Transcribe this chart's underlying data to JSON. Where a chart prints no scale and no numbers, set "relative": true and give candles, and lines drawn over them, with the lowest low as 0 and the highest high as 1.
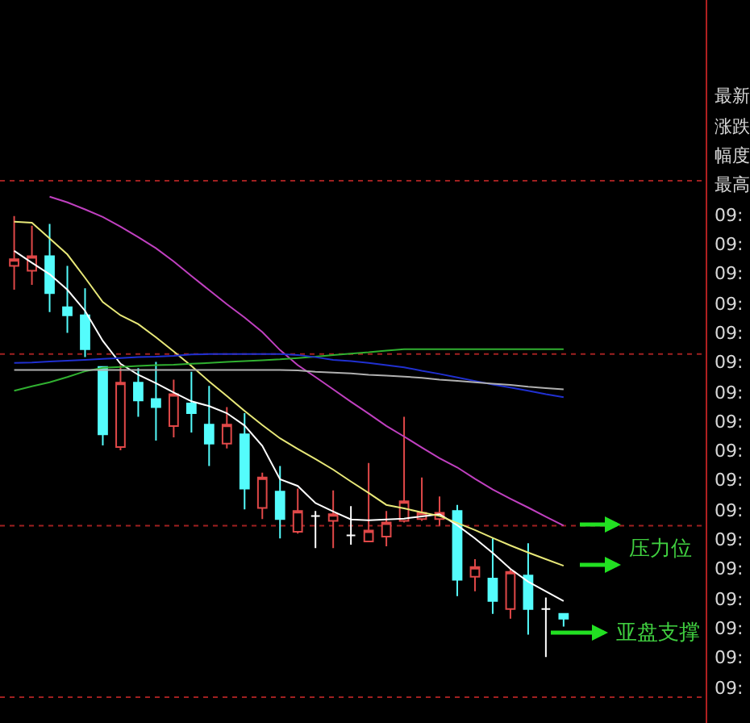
{
  "chart_data": {
    "type": "candlestick",
    "relative": true,
    "categories": [
      null,
      null,
      null,
      null,
      null,
      null,
      null,
      null,
      null,
      null,
      null,
      null,
      null,
      null,
      null,
      null,
      null,
      null,
      null,
      null,
      null,
      null,
      null,
      null,
      null,
      null,
      null,
      null,
      null,
      null,
      null,
      null
    ],
    "ohlc": [
      [
        0.887,
        1.0,
        0.833,
        0.902
      ],
      [
        0.876,
        0.978,
        0.844,
        0.909
      ],
      [
        0.909,
        0.982,
        0.782,
        0.825
      ],
      [
        0.793,
        0.887,
        0.735,
        0.775
      ],
      [
        0.775,
        0.836,
        0.68,
        0.698
      ],
      [
        0.658,
        0.658,
        0.48,
        0.505
      ],
      [
        0.476,
        0.662,
        0.469,
        0.622
      ],
      [
        0.622,
        0.655,
        0.545,
        0.582
      ],
      [
        0.585,
        0.669,
        0.491,
        0.567
      ],
      [
        0.524,
        0.629,
        0.498,
        0.596
      ],
      [
        0.575,
        0.647,
        0.509,
        0.553
      ],
      [
        0.527,
        0.615,
        0.433,
        0.484
      ],
      [
        0.484,
        0.567,
        0.473,
        0.527
      ],
      [
        0.505,
        0.553,
        0.335,
        0.382
      ],
      [
        0.338,
        0.418,
        0.313,
        0.407
      ],
      [
        0.375,
        0.433,
        0.269,
        0.313
      ],
      [
        0.284,
        0.382,
        0.28,
        0.331
      ],
      [
        0.32,
        0.331,
        0.247,
        0.32
      ],
      [
        0.309,
        0.378,
        0.247,
        0.324
      ],
      [
        0.276,
        0.342,
        0.255,
        0.276
      ],
      [
        0.262,
        0.44,
        0.262,
        0.287
      ],
      [
        0.273,
        0.331,
        0.251,
        0.305
      ],
      [
        0.309,
        0.545,
        0.305,
        0.353
      ],
      [
        0.313,
        0.407,
        0.309,
        0.327
      ],
      [
        0.313,
        0.364,
        0.298,
        0.327
      ],
      [
        0.331,
        0.345,
        0.138,
        0.175
      ],
      [
        0.182,
        0.222,
        0.149,
        0.204
      ],
      [
        0.178,
        0.269,
        0.098,
        0.127
      ],
      [
        0.109,
        0.2,
        0.087,
        0.193
      ],
      [
        0.185,
        0.258,
        0.051,
        0.109
      ],
      [
        0.109,
        0.135,
        0.0,
        0.109
      ],
      [
        0.098,
        0.098,
        0.069,
        0.087
      ]
    ],
    "colors": [
      "#e04848",
      "#e04848",
      "#54fcfc",
      "#54fcfc",
      "#54fcfc",
      "#54fcfc",
      "#e04848",
      "#54fcfc",
      "#54fcfc",
      "#e04848",
      "#54fcfc",
      "#54fcfc",
      "#e04848",
      "#54fcfc",
      "#e04848",
      "#54fcfc",
      "#e04848",
      "#ffffff",
      "#e04848",
      "#ffffff",
      "#e04848",
      "#e04848",
      "#e04848",
      "#e04848",
      "#e04848",
      "#54fcfc",
      "#e04848",
      "#54fcfc",
      "#e04848",
      "#54fcfc",
      "#ffffff",
      "#54fcfc"
    ],
    "series": [
      {
        "type": "line",
        "color": "#ffffff",
        "values": [
          0.921,
          0.894,
          0.868,
          0.833,
          0.785,
          0.717,
          0.665,
          0.64,
          0.621,
          0.6,
          0.58,
          0.569,
          0.553,
          0.525,
          0.479,
          0.403,
          0.388,
          0.349,
          0.33,
          0.312,
          0.31,
          0.312,
          0.314,
          0.319,
          0.324,
          0.299,
          0.269,
          0.236,
          0.2,
          0.171,
          0.149,
          0.127
        ]
      },
      {
        "type": "line",
        "color": "#e8e878",
        "values": [
          0.987,
          0.985,
          0.949,
          0.913,
          0.86,
          0.805,
          0.775,
          0.755,
          0.725,
          0.693,
          0.66,
          0.625,
          0.592,
          0.558,
          0.526,
          0.496,
          0.472,
          0.449,
          0.425,
          0.398,
          0.372,
          0.345,
          0.337,
          0.328,
          0.32,
          0.304,
          0.288,
          0.27,
          0.253,
          0.237,
          0.222,
          0.207
        ]
      },
      {
        "type": "line",
        "color": "#c040c0",
        "values": [
          null,
          null,
          1.044,
          1.031,
          1.015,
          0.998,
          0.976,
          0.952,
          0.927,
          0.897,
          0.864,
          0.832,
          0.8,
          0.77,
          0.737,
          0.696,
          0.662,
          0.635,
          0.607,
          0.579,
          0.552,
          0.524,
          0.5,
          0.475,
          0.451,
          0.43,
          0.404,
          0.38,
          0.359,
          0.339,
          0.318,
          0.298
        ]
      },
      {
        "type": "line",
        "color": "#30b030",
        "values": [
          0.604,
          0.614,
          0.623,
          0.635,
          0.648,
          0.656,
          0.658,
          0.66,
          0.662,
          0.663,
          0.665,
          0.667,
          0.669,
          0.671,
          0.673,
          0.675,
          0.678,
          0.681,
          0.685,
          0.688,
          0.691,
          0.695,
          0.698,
          0.698,
          0.698,
          0.698,
          0.698,
          0.698,
          0.698,
          0.698,
          0.698,
          0.698
        ]
      },
      {
        "type": "line",
        "color": "#2030d0",
        "values": [
          0.667,
          0.668,
          0.67,
          0.672,
          0.674,
          0.676,
          0.678,
          0.68,
          0.681,
          0.683,
          0.686,
          0.687,
          0.687,
          0.687,
          0.687,
          0.687,
          0.685,
          0.68,
          0.674,
          0.671,
          0.667,
          0.662,
          0.657,
          0.649,
          0.642,
          0.634,
          0.626,
          0.618,
          0.611,
          0.604,
          0.596,
          0.589
        ]
      },
      {
        "type": "line",
        "color": "#b0b0b0",
        "values": [
          0.651,
          0.651,
          0.651,
          0.651,
          0.651,
          0.651,
          0.651,
          0.651,
          0.651,
          0.651,
          0.651,
          0.651,
          0.651,
          0.651,
          0.651,
          0.651,
          0.65,
          0.647,
          0.645,
          0.643,
          0.64,
          0.638,
          0.636,
          0.633,
          0.629,
          0.626,
          0.623,
          0.62,
          0.617,
          0.613,
          0.61,
          0.607
        ]
      }
    ],
    "ref_lines": [
      {
        "axis": "y",
        "value": 1.08,
        "color": "#a02020",
        "line_style": "dotted"
      },
      {
        "axis": "y",
        "value": 0.687,
        "color": "#a02020",
        "line_style": "dotted"
      },
      {
        "axis": "y",
        "value": 0.298,
        "color": "#a02020",
        "line_style": "dotted"
      },
      {
        "axis": "y",
        "value": -0.091,
        "color": "#a02020",
        "line_style": "dotted"
      }
    ],
    "annotations": [
      "压力位",
      "亚盘支撑",
      "最新",
      "涨跌",
      "幅度",
      "最高",
      "09:",
      "09:",
      "09:",
      "09:",
      "09:",
      "09:",
      "09:",
      "09:",
      "09:",
      "09:",
      "09:",
      "09:",
      "09:",
      "09:",
      "09:",
      "09:",
      "09:"
    ]
  }
}
